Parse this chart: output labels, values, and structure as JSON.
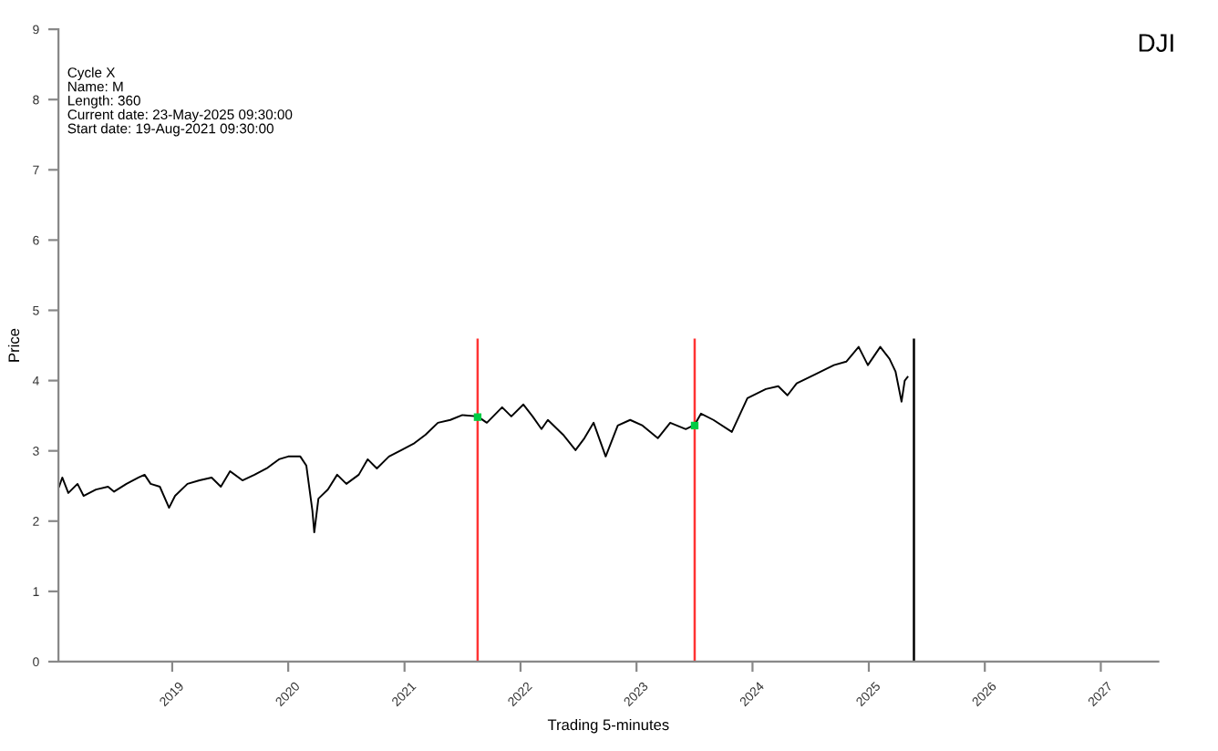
{
  "chart_data": {
    "type": "line",
    "title": "DJI",
    "xlabel": "Trading 5-minutes",
    "ylabel": "Price",
    "annotations": [
      "Cycle X",
      "Name: M",
      "Length: 360",
      "Current date: 23-May-2025 09:30:00",
      "Start date: 19-Aug-2021 09:30:00"
    ],
    "xlim": [
      "2018-01-08",
      "2027-07-01"
    ],
    "xticks": [
      {
        "value": "2019-01-01",
        "label": "2019"
      },
      {
        "value": "2020-01-01",
        "label": "2020"
      },
      {
        "value": "2021-01-01",
        "label": "2021"
      },
      {
        "value": "2022-01-01",
        "label": "2022"
      },
      {
        "value": "2023-01-01",
        "label": "2023"
      },
      {
        "value": "2024-01-01",
        "label": "2024"
      },
      {
        "value": "2025-01-01",
        "label": "2025"
      },
      {
        "value": "2026-01-01",
        "label": "2026"
      },
      {
        "value": "2027-01-01",
        "label": "2027"
      }
    ],
    "ylim": [
      0,
      9
    ],
    "yticks": [
      0,
      1,
      2,
      3,
      4,
      5,
      6,
      7,
      8,
      9
    ],
    "grid": false,
    "legend": false,
    "series": [
      {
        "color": "#000000",
        "marker": "none",
        "x": [
          "2018-01-10",
          "2018-01-20",
          "2018-02-08",
          "2018-03-09",
          "2018-03-28",
          "2018-05-06",
          "2018-06-13",
          "2018-07-02",
          "2018-08-10",
          "2018-09-17",
          "2018-10-06",
          "2018-10-25",
          "2018-11-23",
          "2018-12-22",
          "2019-01-10",
          "2019-02-18",
          "2019-03-28",
          "2019-05-05",
          "2019-06-03",
          "2019-07-02",
          "2019-08-10",
          "2019-09-17",
          "2019-10-25",
          "2019-12-03",
          "2020-01-01",
          "2020-02-08",
          "2020-02-27",
          "2020-03-17",
          "2020-03-23",
          "2020-04-05",
          "2020-05-05",
          "2020-06-03",
          "2020-07-02",
          "2020-08-10",
          "2020-09-07",
          "2020-10-06",
          "2020-11-13",
          "2020-12-22",
          "2021-01-29",
          "2021-03-08",
          "2021-04-16",
          "2021-05-25",
          "2021-07-02",
          "2021-08-19",
          "2021-09-17",
          "2021-11-04",
          "2021-12-03",
          "2022-01-10",
          "2022-02-08",
          "2022-03-08",
          "2022-03-28",
          "2022-05-15",
          "2022-06-23",
          "2022-07-21",
          "2022-08-19",
          "2022-09-26",
          "2022-11-03",
          "2022-12-12",
          "2023-01-20",
          "2023-03-09",
          "2023-04-17",
          "2023-06-05",
          "2023-07-03",
          "2023-07-23",
          "2023-08-31",
          "2023-10-28",
          "2023-12-16",
          "2024-02-12",
          "2024-03-22",
          "2024-04-20",
          "2024-05-19",
          "2024-07-17",
          "2024-09-13",
          "2024-10-22",
          "2024-11-30",
          "2024-12-29",
          "2025-02-06",
          "2025-03-07",
          "2025-03-26",
          "2025-04-14",
          "2025-04-24",
          "2025-05-03"
        ],
        "values": [
          2.49,
          2.62,
          2.4,
          2.53,
          2.36,
          2.45,
          2.49,
          2.42,
          2.53,
          2.62,
          2.66,
          2.53,
          2.49,
          2.19,
          2.36,
          2.53,
          2.58,
          2.62,
          2.49,
          2.71,
          2.58,
          2.66,
          2.75,
          2.88,
          2.92,
          2.92,
          2.79,
          2.15,
          1.84,
          2.32,
          2.45,
          2.66,
          2.53,
          2.66,
          2.88,
          2.75,
          2.92,
          3.01,
          3.1,
          3.23,
          3.4,
          3.44,
          3.51,
          3.49,
          3.4,
          3.62,
          3.49,
          3.66,
          3.49,
          3.31,
          3.44,
          3.23,
          3.01,
          3.18,
          3.4,
          2.92,
          3.36,
          3.44,
          3.36,
          3.18,
          3.4,
          3.31,
          3.37,
          3.53,
          3.44,
          3.27,
          3.75,
          3.88,
          3.92,
          3.79,
          3.96,
          4.09,
          4.22,
          4.27,
          4.48,
          4.22,
          4.48,
          4.31,
          4.13,
          3.7,
          4.0,
          4.05
        ]
      },
      {
        "type": "scatter",
        "color": "#00cc44",
        "marker": "square",
        "x": [
          "2021-08-19",
          "2023-07-03"
        ],
        "values": [
          3.48,
          3.36
        ]
      }
    ],
    "ref_lines": [
      {
        "axis": "x",
        "value": "2021-08-19",
        "color": "#ff3333"
      },
      {
        "axis": "x",
        "value": "2023-07-03",
        "color": "#ff3333"
      },
      {
        "axis": "x",
        "value": "2025-05-23",
        "color": "#000000"
      }
    ]
  }
}
